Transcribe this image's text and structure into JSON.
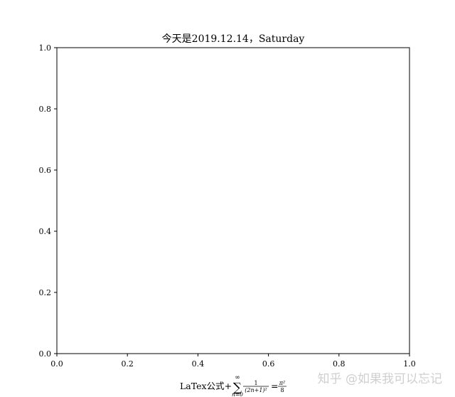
{
  "chart_data": {
    "type": "line",
    "title": "今天是2019.12.14，Saturday",
    "xlabel": {
      "prefix": "LaTex公式+",
      "sum_symbol": "∑",
      "sum_upper": "∞",
      "sum_lower": "n=0",
      "frac1_num": "1",
      "frac1_den": "(2n+1)²",
      "equals": "=",
      "frac2_num": "π²",
      "frac2_den": "8"
    },
    "ylabel": "",
    "xlim": [
      0,
      1
    ],
    "ylim": [
      0,
      1
    ],
    "xticks": [
      "0.0",
      "0.2",
      "0.4",
      "0.6",
      "0.8",
      "1.0"
    ],
    "yticks": [
      "0.0",
      "0.2",
      "0.4",
      "0.6",
      "0.8",
      "1.0"
    ],
    "series": [],
    "grid": false
  },
  "watermark": {
    "text": "知乎 @如果我可以忘记",
    "color": "#cfcfcf"
  }
}
